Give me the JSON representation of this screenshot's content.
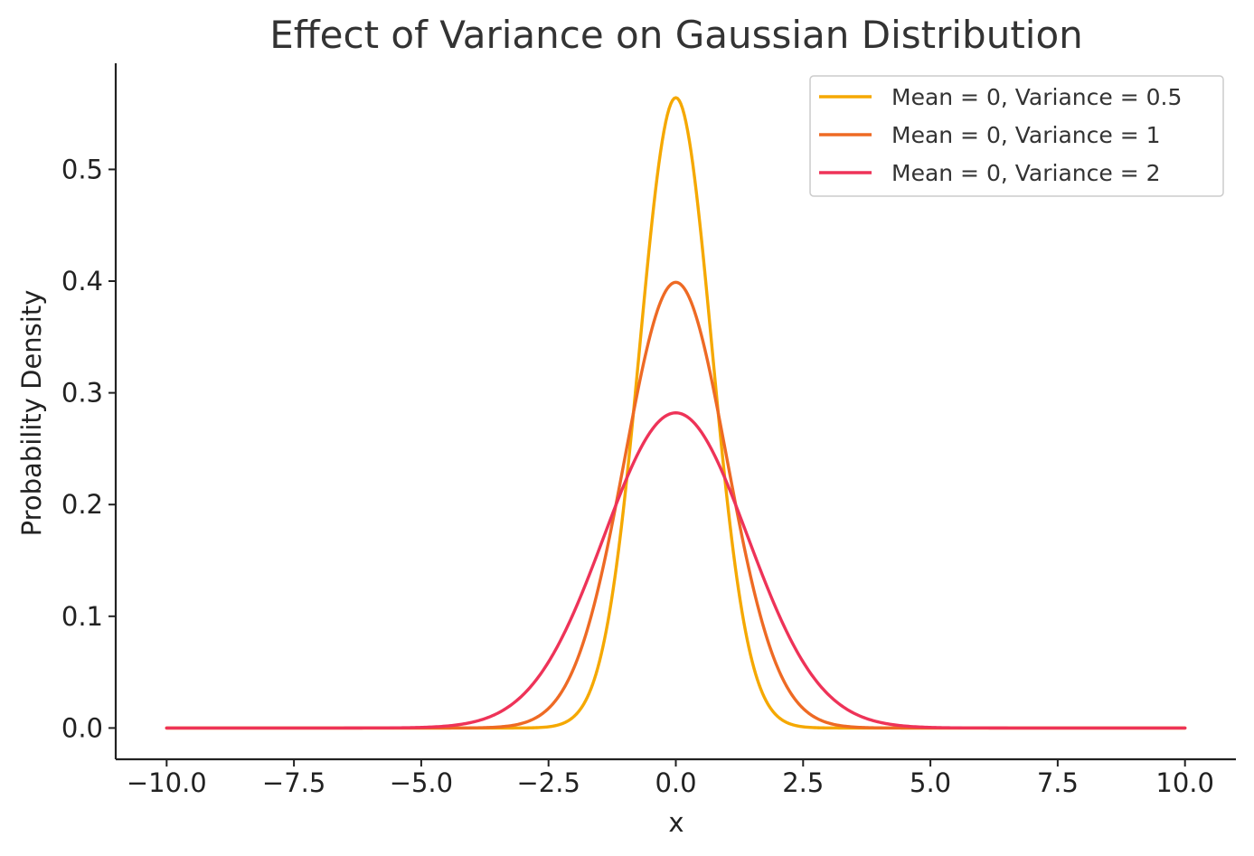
{
  "chart_data": {
    "type": "line",
    "title": "Effect of Variance on Gaussian Distribution",
    "xlabel": "x",
    "ylabel": "Probability Density",
    "xlim": [
      -11,
      11
    ],
    "ylim": [
      -0.028,
      0.595
    ],
    "x_range": [
      -10,
      10
    ],
    "xticks": [
      -10.0,
      -7.5,
      -5.0,
      -2.5,
      0.0,
      2.5,
      5.0,
      7.5,
      10.0
    ],
    "xtick_labels": [
      "−10.0",
      "−7.5",
      "−5.0",
      "−2.5",
      "0.0",
      "2.5",
      "5.0",
      "7.5",
      "10.0"
    ],
    "yticks": [
      0.0,
      0.1,
      0.2,
      0.3,
      0.4,
      0.5
    ],
    "ytick_labels": [
      "0.0",
      "0.1",
      "0.2",
      "0.3",
      "0.4",
      "0.5"
    ],
    "grid": false,
    "legend_position": "top-right",
    "series": [
      {
        "name": "Mean = 0, Variance = 0.5",
        "mean": 0,
        "variance": 0.5,
        "peak": 0.564,
        "color": "#f5a800",
        "x": [
          -10,
          -3,
          -2.5,
          -2,
          -1.5,
          -1,
          -0.5,
          0,
          0.5,
          1,
          1.5,
          2,
          2.5,
          3,
          10
        ],
        "values": [
          0.0,
          0.0001,
          0.001,
          0.0103,
          0.0595,
          0.2076,
          0.4393,
          0.5642,
          0.4393,
          0.2076,
          0.0595,
          0.0103,
          0.001,
          0.0001,
          0.0
        ]
      },
      {
        "name": "Mean = 0, Variance = 1",
        "mean": 0,
        "variance": 1,
        "peak": 0.399,
        "color": "#ee6a24",
        "x": [
          -10,
          -4,
          -3,
          -2.5,
          -2,
          -1.5,
          -1,
          -0.5,
          0,
          0.5,
          1,
          1.5,
          2,
          2.5,
          3,
          4,
          10
        ],
        "values": [
          0.0,
          0.0001,
          0.0044,
          0.0175,
          0.054,
          0.1295,
          0.242,
          0.3521,
          0.3989,
          0.3521,
          0.242,
          0.1295,
          0.054,
          0.0175,
          0.0044,
          0.0001,
          0.0
        ]
      },
      {
        "name": "Mean = 0, Variance = 2",
        "mean": 0,
        "variance": 2,
        "peak": 0.282,
        "color": "#ee3358",
        "x": [
          -10,
          -5,
          -4,
          -3,
          -2.5,
          -2,
          -1.5,
          -1,
          -0.5,
          0,
          0.5,
          1,
          1.5,
          2,
          2.5,
          3,
          4,
          5,
          10
        ],
        "values": [
          0.0,
          0.0011,
          0.0052,
          0.0297,
          0.0587,
          0.1038,
          0.1613,
          0.2197,
          0.2627,
          0.2821,
          0.2627,
          0.2197,
          0.1613,
          0.1038,
          0.0587,
          0.0297,
          0.0052,
          0.0011,
          0.0
        ]
      }
    ]
  }
}
